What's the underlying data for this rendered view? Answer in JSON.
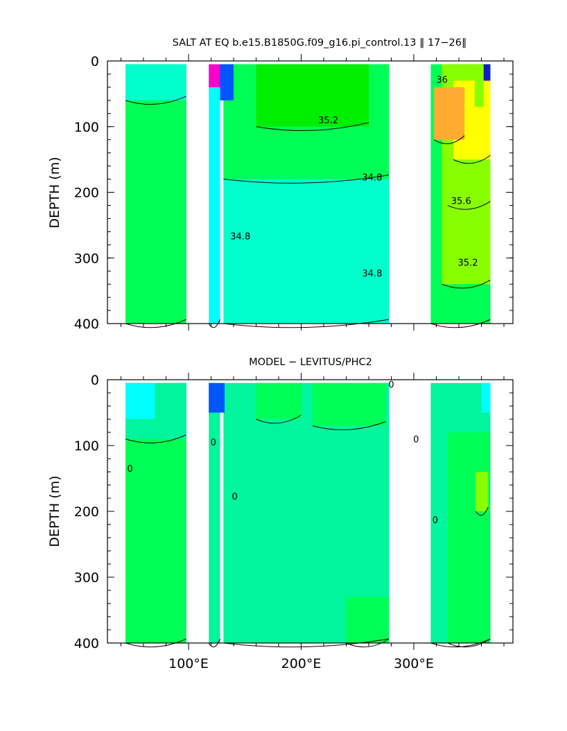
{
  "chart_data": [
    {
      "type": "heatmap",
      "title": "SALT AT EQ b.e15.B1850G.f09_g16.pi_control.13 ‖ 17−26‖",
      "xlabel": "",
      "ylabel": "DEPTH (m)",
      "xlim": [
        28,
        388
      ],
      "ylim": [
        400,
        0
      ],
      "x_ticks": [
        100,
        200,
        300
      ],
      "x_tick_labels": [
        "",
        "",
        ""
      ],
      "y_ticks": [
        0,
        100,
        200,
        300,
        400
      ],
      "y_tick_labels": [
        "0",
        "100",
        "200",
        "300",
        "400"
      ],
      "grid": false,
      "data_columns": [
        {
          "x0": 44,
          "x1": 98,
          "depth_top": 5
        },
        {
          "x0": 118,
          "x1": 128,
          "depth_top": 5
        },
        {
          "x0": 131,
          "x1": 278,
          "depth_top": 5
        },
        {
          "x0": 315,
          "x1": 368,
          "depth_top": 5
        }
      ],
      "salinity_regions": [
        {
          "x0": 44,
          "x1": 98,
          "d0": 5,
          "d1": 400,
          "level": 35.0
        },
        {
          "x0": 44,
          "x1": 98,
          "d0": 5,
          "d1": 60,
          "level": 34.8
        },
        {
          "x0": 118,
          "x1": 128,
          "d0": 5,
          "d1": 400,
          "level": 34.6
        },
        {
          "x0": 131,
          "x1": 278,
          "d0": 5,
          "d1": 400,
          "level": 34.8
        },
        {
          "x0": 131,
          "x1": 278,
          "d0": 5,
          "d1": 180,
          "level": 35.0
        },
        {
          "x0": 160,
          "x1": 260,
          "d0": 5,
          "d1": 100,
          "level": 35.2
        },
        {
          "x0": 315,
          "x1": 368,
          "d0": 5,
          "d1": 400,
          "level": 35.0
        },
        {
          "x0": 325,
          "x1": 368,
          "d0": 5,
          "d1": 340,
          "level": 35.4
        },
        {
          "x0": 330,
          "x1": 368,
          "d0": 5,
          "d1": 220,
          "level": 35.6
        },
        {
          "x0": 335,
          "x1": 368,
          "d0": 30,
          "d1": 150,
          "level": 36.0
        },
        {
          "x0": 318,
          "x1": 345,
          "d0": 40,
          "d1": 120,
          "level": 36.2
        }
      ],
      "contour_labels": [
        {
          "text": "35.2",
          "x": 224,
          "depth": 95
        },
        {
          "text": "34.8",
          "x": 263,
          "depth": 182
        },
        {
          "text": "34.8",
          "x": 146,
          "depth": 272
        },
        {
          "text": "34.8",
          "x": 263,
          "depth": 328
        },
        {
          "text": "36",
          "x": 325,
          "depth": 33
        },
        {
          "text": "35.6",
          "x": 342,
          "depth": 218
        },
        {
          "text": "35.2",
          "x": 348,
          "depth": 312
        }
      ]
    },
    {
      "type": "heatmap",
      "title": "MODEL − LEVITUS/PHC2",
      "xlabel": "",
      "ylabel": "DEPTH (m)",
      "xlim": [
        28,
        388
      ],
      "ylim": [
        400,
        0
      ],
      "x_ticks": [
        100,
        200,
        300
      ],
      "x_tick_labels": [
        "100°E",
        "200°E",
        "300°E"
      ],
      "y_ticks": [
        0,
        100,
        200,
        300,
        400
      ],
      "y_tick_labels": [
        "0",
        "100",
        "200",
        "300",
        "400"
      ],
      "grid": false,
      "data_columns": [
        {
          "x0": 44,
          "x1": 98,
          "depth_top": 5
        },
        {
          "x0": 118,
          "x1": 128,
          "depth_top": 5
        },
        {
          "x0": 131,
          "x1": 278,
          "depth_top": 5
        },
        {
          "x0": 315,
          "x1": 368,
          "depth_top": 5
        }
      ],
      "difference_regions": [
        {
          "x0": 44,
          "x1": 98,
          "d0": 5,
          "d1": 400,
          "level": 0.0
        },
        {
          "x0": 44,
          "x1": 98,
          "d0": 5,
          "d1": 90,
          "level": -0.2
        },
        {
          "x0": 118,
          "x1": 128,
          "d0": 5,
          "d1": 400,
          "level": -0.2
        },
        {
          "x0": 131,
          "x1": 278,
          "d0": 5,
          "d1": 400,
          "level": -0.2
        },
        {
          "x0": 160,
          "x1": 200,
          "d0": 5,
          "d1": 60,
          "level": 0.0
        },
        {
          "x0": 210,
          "x1": 275,
          "d0": 5,
          "d1": 70,
          "level": 0.0
        },
        {
          "x0": 240,
          "x1": 278,
          "d0": 330,
          "d1": 400,
          "level": 0.0
        },
        {
          "x0": 315,
          "x1": 368,
          "d0": 5,
          "d1": 400,
          "level": -0.2
        },
        {
          "x0": 330,
          "x1": 368,
          "d0": 80,
          "d1": 400,
          "level": 0.0
        },
        {
          "x0": 355,
          "x1": 366,
          "d0": 140,
          "d1": 200,
          "level": 0.2
        }
      ],
      "contour_labels": [
        {
          "text": "0",
          "x": 48,
          "depth": 140
        },
        {
          "text": "0",
          "x": 122,
          "depth": 100
        },
        {
          "text": "0",
          "x": 141,
          "depth": 182
        },
        {
          "text": "0",
          "x": 280,
          "depth": 12
        },
        {
          "text": "0",
          "x": 302,
          "depth": 95
        },
        {
          "text": "0",
          "x": 319,
          "depth": 218
        }
      ]
    }
  ],
  "colors": {
    "cyan": "#00ffff",
    "teal": "#00ffcc",
    "aqua_green": "#00f59d",
    "green": "#00ff55",
    "green_bright": "#00ee00",
    "lime": "#88ff00",
    "yellow": "#ffff00",
    "orange": "#ffaa33",
    "blue": "#0055ff",
    "dark_blue": "#1020c0",
    "magenta": "#ff00cc"
  }
}
